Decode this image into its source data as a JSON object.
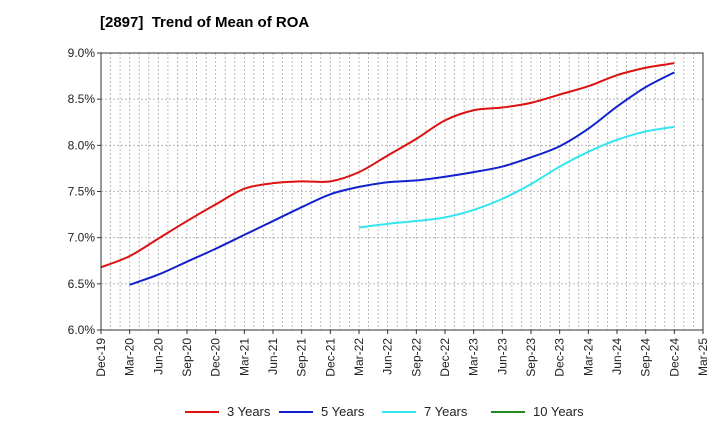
{
  "chart_data": {
    "type": "line",
    "title": "[2897]  Trend of Mean of ROA",
    "xlabel": "",
    "ylabel": "",
    "y_ticks": [
      "6.0%",
      "6.5%",
      "7.0%",
      "7.5%",
      "8.0%",
      "8.5%",
      "9.0%"
    ],
    "ylim": [
      6.0,
      9.0
    ],
    "grid": true,
    "legend_position": "bottom",
    "categories": [
      "Dec-19",
      "Mar-20",
      "Jun-20",
      "Sep-20",
      "Dec-20",
      "Mar-21",
      "Jun-21",
      "Sep-21",
      "Dec-21",
      "Mar-22",
      "Jun-22",
      "Sep-22",
      "Dec-22",
      "Mar-23",
      "Jun-23",
      "Sep-23",
      "Dec-23",
      "Mar-24",
      "Jun-24",
      "Sep-24",
      "Dec-24",
      "Mar-25"
    ],
    "series": [
      {
        "name": "3 Years",
        "color": "#dd1111",
        "values": [
          6.68,
          6.8,
          6.99,
          7.18,
          7.36,
          7.53,
          7.59,
          7.61,
          7.61,
          7.71,
          7.89,
          8.07,
          8.27,
          8.38,
          8.41,
          8.46,
          8.55,
          8.64,
          8.76,
          8.84,
          8.89,
          null
        ]
      },
      {
        "name": "5 Years",
        "color": "#1122cc",
        "values": [
          null,
          6.49,
          6.6,
          6.74,
          6.88,
          7.03,
          7.18,
          7.33,
          7.47,
          7.55,
          7.6,
          7.62,
          7.66,
          7.71,
          7.77,
          7.87,
          7.99,
          8.18,
          8.42,
          8.63,
          8.79,
          null
        ]
      },
      {
        "name": "7 Years",
        "color": "#33e5ee",
        "values": [
          null,
          null,
          null,
          null,
          null,
          null,
          null,
          null,
          null,
          7.11,
          7.15,
          7.18,
          7.22,
          7.3,
          7.42,
          7.58,
          7.77,
          7.93,
          8.06,
          8.15,
          8.2,
          null
        ]
      },
      {
        "name": "10 Years",
        "color": "#228822",
        "values": [
          null,
          null,
          null,
          null,
          null,
          null,
          null,
          null,
          null,
          null,
          null,
          null,
          null,
          null,
          null,
          null,
          null,
          null,
          null,
          null,
          null,
          null
        ]
      }
    ]
  }
}
